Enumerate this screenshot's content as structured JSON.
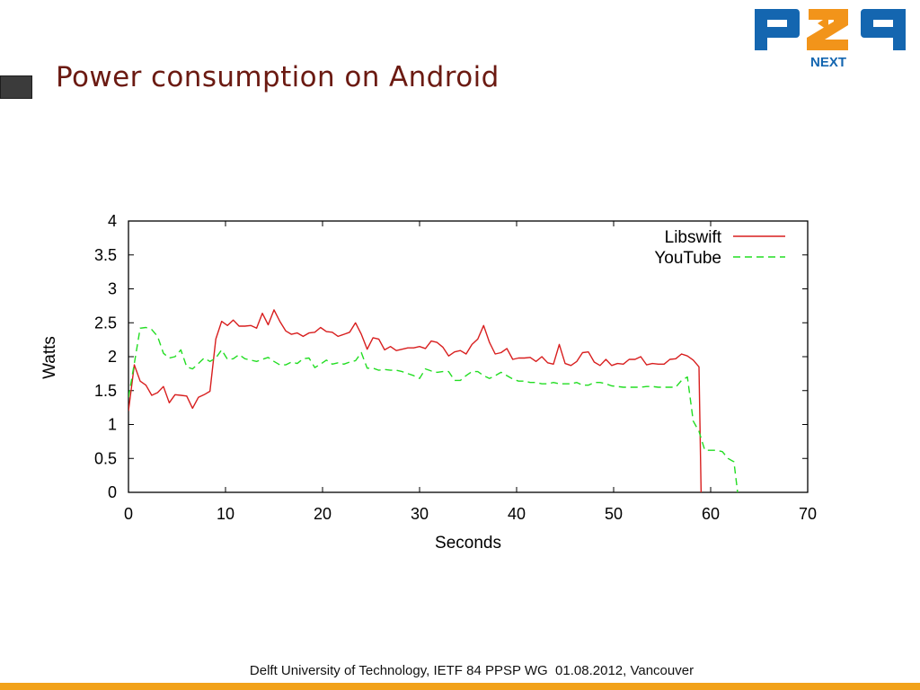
{
  "slide": {
    "title": "Power consumption on Android",
    "footer": "Delft University of Technology, IETF 84 PPSP WG  01.08.2012, Vancouver"
  },
  "logo": {
    "text": "P2P",
    "subtext": "NEXT",
    "blue": "#1466b0",
    "orange": "#f2941a"
  },
  "chart_data": {
    "type": "line",
    "xlabel": "Seconds",
    "ylabel": "Watts",
    "xlim": [
      0,
      70
    ],
    "ylim": [
      0,
      4
    ],
    "xticks": [
      0,
      10,
      20,
      30,
      40,
      50,
      60,
      70
    ],
    "yticks": [
      0,
      0.5,
      1,
      1.5,
      2,
      2.5,
      3,
      3.5,
      4
    ],
    "grid": false,
    "legend_position": "top-right",
    "series": [
      {
        "name": "Libswift",
        "color": "#d81e1e",
        "dash": "solid",
        "x": [
          0,
          0.6,
          1.2,
          1.8,
          2.4,
          3.0,
          3.6,
          4.2,
          4.8,
          5.4,
          6.0,
          6.6,
          7.2,
          7.8,
          8.4,
          9.0,
          9.6,
          10.2,
          10.8,
          11.4,
          12.0,
          12.6,
          13.2,
          13.8,
          14.4,
          15.0,
          15.6,
          16.2,
          16.8,
          17.4,
          18.0,
          18.6,
          19.2,
          19.8,
          20.4,
          21.0,
          21.6,
          22.2,
          22.8,
          23.4,
          24.0,
          24.6,
          25.2,
          25.8,
          26.4,
          27.0,
          27.6,
          28.2,
          28.8,
          29.4,
          30.0,
          30.6,
          31.2,
          31.8,
          32.4,
          33.0,
          33.6,
          34.2,
          34.8,
          35.4,
          36.0,
          36.6,
          37.2,
          37.8,
          38.4,
          39.0,
          39.6,
          40.2,
          40.8,
          41.4,
          42.0,
          42.6,
          43.2,
          43.8,
          44.4,
          45.0,
          45.6,
          46.2,
          46.8,
          47.4,
          48.0,
          48.6,
          49.2,
          49.8,
          50.4,
          51.0,
          51.6,
          52.2,
          52.8,
          53.4,
          54.0,
          54.6,
          55.2,
          55.8,
          56.4,
          57.0,
          57.6,
          58.2,
          58.8
        ],
        "y": [
          1.2,
          1.88,
          1.64,
          1.58,
          1.43,
          1.47,
          1.56,
          1.32,
          1.44,
          1.43,
          1.42,
          1.24,
          1.4,
          1.44,
          1.49,
          2.26,
          2.52,
          2.46,
          2.54,
          2.45,
          2.45,
          2.46,
          2.42,
          2.64,
          2.47,
          2.69,
          2.52,
          2.38,
          2.33,
          2.35,
          2.3,
          2.35,
          2.36,
          2.43,
          2.37,
          2.36,
          2.3,
          2.33,
          2.36,
          2.5,
          2.33,
          2.11,
          2.28,
          2.26,
          2.1,
          2.15,
          2.09,
          2.11,
          2.13,
          2.13,
          2.15,
          2.12,
          2.23,
          2.21,
          2.14,
          2.01,
          2.07,
          2.09,
          2.04,
          2.18,
          2.26,
          2.46,
          2.21,
          2.04,
          2.06,
          2.12,
          1.96,
          1.98,
          1.98,
          1.99,
          1.93,
          2.0,
          1.91,
          1.89,
          2.18,
          1.9,
          1.87,
          1.93,
          2.06,
          2.07,
          1.92,
          1.87,
          1.96,
          1.87,
          1.9,
          1.89,
          1.96,
          1.96,
          2.0,
          1.88,
          1.9,
          1.89,
          1.89,
          1.96,
          1.97,
          2.04,
          2.01,
          1.95,
          1.85
        ]
      },
      {
        "name": "YouTube",
        "color": "#22dd22",
        "dash": "dashed",
        "x": [
          0,
          0.6,
          1.2,
          1.8,
          2.4,
          3.0,
          3.6,
          4.2,
          4.8,
          5.4,
          6.0,
          6.6,
          7.2,
          7.8,
          8.4,
          9.0,
          9.6,
          10.2,
          10.8,
          11.4,
          12.0,
          12.6,
          13.2,
          13.8,
          14.4,
          15.0,
          15.6,
          16.2,
          16.8,
          17.4,
          18.0,
          18.6,
          19.2,
          19.8,
          20.4,
          21.0,
          21.6,
          22.2,
          22.8,
          23.4,
          24.0,
          24.6,
          25.2,
          25.8,
          26.4,
          27.0,
          27.6,
          28.2,
          28.8,
          29.4,
          30.0,
          30.6,
          31.2,
          31.8,
          32.4,
          33.0,
          33.6,
          34.2,
          34.8,
          35.4,
          36.0,
          36.6,
          37.2,
          37.8,
          38.4,
          39.0,
          39.6,
          40.2,
          40.8,
          41.4,
          42.0,
          42.6,
          43.2,
          43.8,
          44.4,
          45.0,
          45.6,
          46.2,
          46.8,
          47.4,
          48.0,
          48.6,
          49.2,
          49.8,
          50.4,
          51.0,
          51.6,
          52.2,
          52.8,
          53.4,
          54.0,
          54.6,
          55.2,
          55.8,
          56.4,
          57.0,
          57.6,
          58.2,
          58.8,
          59.4,
          60.0,
          60.6,
          61.2,
          61.8,
          62.4
        ],
        "y": [
          1.4,
          1.9,
          2.42,
          2.43,
          2.4,
          2.3,
          2.05,
          1.98,
          2.0,
          2.1,
          1.85,
          1.82,
          1.9,
          1.98,
          1.93,
          1.98,
          2.1,
          1.96,
          1.97,
          2.03,
          1.97,
          1.95,
          1.93,
          1.96,
          1.99,
          1.93,
          1.88,
          1.88,
          1.92,
          1.9,
          1.97,
          1.98,
          1.84,
          1.89,
          1.95,
          1.89,
          1.91,
          1.89,
          1.92,
          1.94,
          2.06,
          1.83,
          1.83,
          1.8,
          1.81,
          1.8,
          1.8,
          1.78,
          1.75,
          1.72,
          1.68,
          1.82,
          1.79,
          1.77,
          1.78,
          1.78,
          1.65,
          1.65,
          1.72,
          1.78,
          1.78,
          1.72,
          1.68,
          1.72,
          1.77,
          1.72,
          1.67,
          1.64,
          1.64,
          1.62,
          1.62,
          1.6,
          1.6,
          1.62,
          1.6,
          1.6,
          1.6,
          1.62,
          1.58,
          1.58,
          1.62,
          1.62,
          1.6,
          1.57,
          1.56,
          1.55,
          1.55,
          1.55,
          1.55,
          1.56,
          1.56,
          1.55,
          1.55,
          1.55,
          1.55,
          1.65,
          1.7,
          1.05,
          0.9,
          0.62,
          0.62,
          0.62,
          0.6,
          0.5,
          0.45
        ]
      }
    ]
  }
}
